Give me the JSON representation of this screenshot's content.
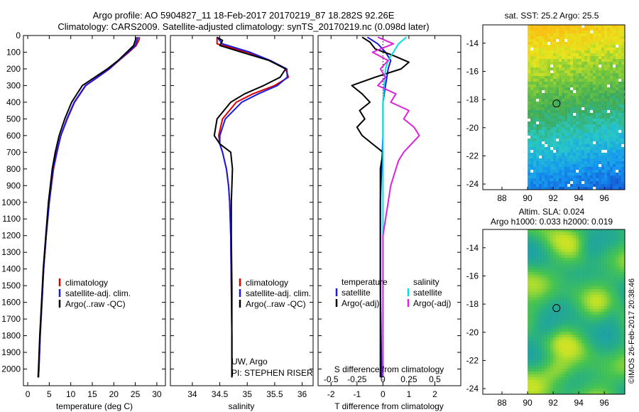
{
  "colors": {
    "climatology": "#dd0000",
    "satellite": "#1a1ae6",
    "argo": "#000000",
    "sal_satellite": "#00e0e0",
    "sal_argo": "#dd22dd"
  },
  "titles": {
    "line1": "Argo profile: AO 5904827_11 18-Feb-2017 20170219_87 18.282S 92.26E",
    "line2": "Climatology: CARS2009. Satellite-adjusted climatology: synTS_20170219.nc (0.098d later)"
  },
  "credit": "©IMOS 26-Feb-2017 20:38:46",
  "chart_data": [
    {
      "id": "temperature",
      "type": "line",
      "xlabel": "temperature (deg C)",
      "xlim": [
        -1,
        32
      ],
      "ylim": [
        0,
        2100
      ],
      "xticks": [
        "0",
        "5",
        "10",
        "15",
        "20",
        "25",
        "30"
      ],
      "xtick_values": [
        0,
        5,
        10,
        15,
        20,
        25,
        30
      ],
      "yticks": [
        "0",
        "100",
        "200",
        "300",
        "400",
        "500",
        "600",
        "700",
        "800",
        "900",
        "1000",
        "1100",
        "1200",
        "1300",
        "1400",
        "1500",
        "1600",
        "1700",
        "1800",
        "1900",
        "2000"
      ],
      "ytick_values": [
        0,
        100,
        200,
        300,
        400,
        500,
        600,
        700,
        800,
        900,
        1000,
        1100,
        1200,
        1300,
        1400,
        1500,
        1600,
        1700,
        1800,
        1900,
        2000
      ],
      "legend": [
        "climatology",
        "satellite-adj. clim.",
        "Argo(..raw -QC)"
      ],
      "series": [
        {
          "name": "climatology",
          "color_key": "climatology",
          "depth": [
            10,
            30,
            60,
            100,
            150,
            200,
            250,
            300,
            400,
            500,
            600,
            700,
            800,
            1000,
            1200,
            1400,
            1600,
            1800,
            2000,
            2050
          ],
          "values": [
            26.0,
            25.8,
            25.2,
            23.5,
            21.2,
            19.0,
            16.3,
            13.5,
            10.9,
            9.2,
            7.7,
            6.8,
            6.0,
            5.0,
            4.3,
            3.7,
            3.3,
            2.9,
            2.6,
            2.5
          ]
        },
        {
          "name": "satellite-adj. clim.",
          "color_key": "satellite",
          "depth": [
            10,
            30,
            60,
            100,
            150,
            200,
            250,
            300,
            400,
            500,
            600,
            700,
            800,
            1000,
            1200,
            1400,
            1600,
            1800,
            2000,
            2050
          ],
          "values": [
            25.6,
            25.4,
            25.0,
            23.3,
            21.1,
            18.9,
            16.2,
            13.4,
            10.8,
            9.1,
            7.7,
            6.7,
            5.9,
            5.0,
            4.3,
            3.7,
            3.3,
            2.9,
            2.6,
            2.5
          ]
        },
        {
          "name": "Argo(..raw -QC)",
          "color_key": "argo",
          "depth": [
            10,
            30,
            60,
            100,
            150,
            200,
            250,
            300,
            400,
            500,
            600,
            700,
            800,
            1000,
            1200,
            1400,
            1600,
            1800,
            2000,
            2050
          ],
          "values": [
            25.2,
            25.0,
            24.6,
            23.0,
            21.0,
            18.5,
            15.6,
            12.7,
            10.2,
            8.6,
            7.3,
            6.4,
            5.7,
            4.8,
            4.2,
            3.6,
            3.2,
            2.8,
            2.5,
            2.4
          ]
        }
      ]
    },
    {
      "id": "salinity",
      "type": "line",
      "xlabel": "salinity",
      "xlim": [
        33.6,
        36.2
      ],
      "ylim": [
        0,
        2100
      ],
      "xticks": [
        "34",
        "34.5",
        "35",
        "35.5",
        "36"
      ],
      "xtick_values": [
        34,
        34.5,
        35,
        35.5,
        36
      ],
      "legend": [
        "climatology",
        "satellite-adj. clim.",
        "Argo(..raw -QC)"
      ],
      "annotation": [
        "UW, Argo",
        "PI: STEPHEN RISER"
      ],
      "series": [
        {
          "name": "climatology",
          "color_key": "climatology",
          "depth": [
            10,
            50,
            100,
            150,
            200,
            250,
            300,
            350,
            400,
            500,
            600,
            650,
            700,
            800,
            900,
            1000,
            1200,
            1500,
            1800,
            2050
          ],
          "values": [
            34.45,
            34.45,
            35.0,
            35.4,
            35.7,
            35.75,
            35.5,
            35.1,
            34.8,
            34.55,
            34.48,
            34.5,
            34.55,
            34.62,
            34.66,
            34.68,
            34.7,
            34.71,
            34.72,
            34.72
          ]
        },
        {
          "name": "satellite-adj. clim.",
          "color_key": "satellite",
          "depth": [
            10,
            50,
            100,
            150,
            200,
            250,
            300,
            350,
            400,
            500,
            600,
            650,
            700,
            800,
            900,
            1000,
            1200,
            1500,
            1800,
            2050
          ],
          "values": [
            34.45,
            34.55,
            35.05,
            35.42,
            35.72,
            35.73,
            35.55,
            35.2,
            34.9,
            34.6,
            34.5,
            34.5,
            34.55,
            34.62,
            34.66,
            34.68,
            34.7,
            34.71,
            34.72,
            34.72
          ]
        },
        {
          "name": "Argo(..raw -QC)",
          "color_key": "argo",
          "depth": [
            10,
            30,
            60,
            100,
            150,
            200,
            250,
            300,
            350,
            400,
            500,
            600,
            650,
            700,
            800,
            900,
            1000,
            1200,
            1500,
            1800,
            2050
          ],
          "values": [
            34.45,
            34.55,
            34.5,
            34.9,
            35.4,
            35.7,
            35.6,
            35.3,
            34.95,
            34.7,
            34.45,
            34.4,
            34.5,
            34.7,
            34.73,
            34.72,
            34.71,
            34.71,
            34.72,
            34.72,
            34.72
          ]
        }
      ]
    },
    {
      "id": "difference",
      "type": "line",
      "xlabel": "T difference from climatology",
      "xlabel_top": "S difference from climatology",
      "xlim": [
        -2.5,
        3
      ],
      "ylim": [
        0,
        2100
      ],
      "xticks": [
        "-2",
        "-1",
        "0",
        "1",
        "2"
      ],
      "xtick_values": [
        -2,
        -1,
        0,
        1,
        2
      ],
      "s_ticks": [
        "-0.5",
        "-0.25",
        "0",
        "0.25",
        "0.5"
      ],
      "s_tick_values": [
        -2,
        -1,
        0,
        1,
        2
      ],
      "legend_headers": [
        "temperature",
        "salinity"
      ],
      "legend": [
        "satellite",
        "Argo(-adj)",
        "satellite",
        "Argo(-adj)"
      ],
      "series": [
        {
          "name": "temperature satellite",
          "color_key": "satellite",
          "depth": [
            10,
            50,
            100,
            150,
            200,
            300,
            400,
            600,
            800,
            1000,
            1500,
            2000,
            2050
          ],
          "values": [
            -0.6,
            -0.2,
            0.1,
            0.3,
            0.2,
            0.1,
            0.0,
            0.0,
            -0.05,
            -0.1,
            -0.1,
            -0.05,
            -0.05
          ]
        },
        {
          "name": "temperature Argo(-adj)",
          "color_key": "argo",
          "depth": [
            10,
            40,
            80,
            120,
            160,
            200,
            250,
            300,
            350,
            400,
            450,
            500,
            550,
            600,
            650,
            700,
            800,
            900,
            1000,
            1200,
            1500,
            2000,
            2050
          ],
          "values": [
            -0.8,
            -0.5,
            -0.3,
            0.4,
            1.0,
            0.7,
            -0.3,
            -1.2,
            -0.8,
            -0.5,
            -0.9,
            -0.7,
            -1.0,
            -0.8,
            -0.4,
            0.0,
            -0.1,
            -0.1,
            -0.1,
            -0.1,
            -0.1,
            -0.1,
            -0.1
          ]
        },
        {
          "name": "salinity satellite",
          "color_key": "sal_satellite",
          "depth": [
            10,
            50,
            100,
            150,
            200,
            300,
            400,
            600,
            800,
            1000,
            1500,
            2000,
            2050
          ],
          "values": [
            0.9,
            0.6,
            0.4,
            0.2,
            0.1,
            0.05,
            0.0,
            0.0,
            0.0,
            0.0,
            0.0,
            0.0,
            0.0
          ]
        },
        {
          "name": "salinity Argo(-adj)",
          "color_key": "sal_argo",
          "depth": [
            10,
            50,
            100,
            150,
            200,
            250,
            300,
            350,
            400,
            450,
            500,
            550,
            600,
            650,
            700,
            750,
            800,
            900,
            1000,
            1100,
            1200,
            1300,
            1500,
            2000,
            2050
          ],
          "values": [
            -0.2,
            0.4,
            -0.4,
            0.2,
            -0.1,
            0.1,
            -0.2,
            0.5,
            0.3,
            1.0,
            0.8,
            1.2,
            1.4,
            1.1,
            0.8,
            0.6,
            0.5,
            0.3,
            0.2,
            0.1,
            0.0,
            0.0,
            0.0,
            0.0,
            0.0
          ]
        }
      ]
    },
    {
      "id": "sst_map",
      "type": "heatmap",
      "title": "sat. SST: 25.2  Argo: 25.5",
      "xlim": [
        86.5,
        97.6
      ],
      "ylim": [
        -24.4,
        -12.7
      ],
      "xticks": [
        "88",
        "90",
        "92",
        "94",
        "96"
      ],
      "xtick_values": [
        88,
        90,
        92,
        94,
        96
      ],
      "yticks": [
        "-14",
        "-16",
        "-18",
        "-20",
        "-22",
        "-24"
      ],
      "ytick_values": [
        -14,
        -16,
        -18,
        -20,
        -22,
        -24
      ],
      "data_xlim": [
        90,
        97.6
      ],
      "argo_position": {
        "lon": 92.26,
        "lat": -18.282
      }
    },
    {
      "id": "sla_map",
      "type": "heatmap",
      "title": "Altim. SLA: 0.024",
      "subtitle": "Argo h1000: 0.033 h2000: 0.019",
      "xlim": [
        86.5,
        97.6
      ],
      "ylim": [
        -24.4,
        -12.7
      ],
      "xticks": [
        "88",
        "90",
        "92",
        "94",
        "96"
      ],
      "xtick_values": [
        88,
        90,
        92,
        94,
        96
      ],
      "yticks": [
        "-14",
        "-16",
        "-18",
        "-20",
        "-22",
        "-24"
      ],
      "ytick_values": [
        -14,
        -16,
        -18,
        -20,
        -22,
        -24
      ],
      "data_xlim": [
        90,
        97.6
      ],
      "argo_position": {
        "lon": 92.26,
        "lat": -18.282
      }
    }
  ]
}
